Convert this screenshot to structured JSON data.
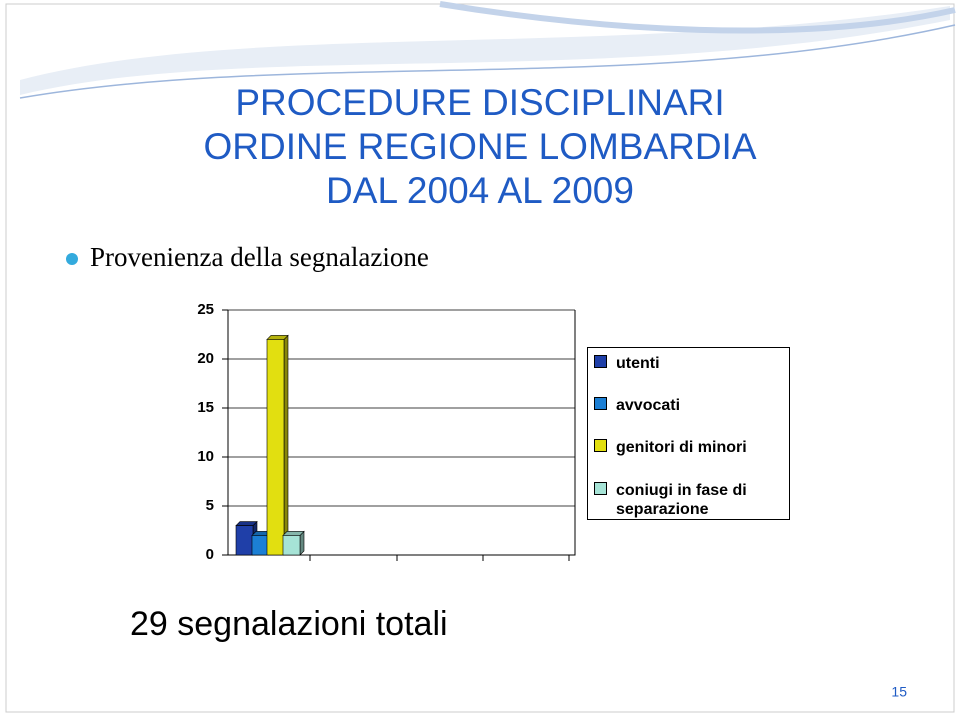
{
  "slide": {
    "title": [
      "PROCEDURE DISCIPLINARI",
      "ORDINE REGIONE LOMBARDIA",
      "DAL 2004 AL 2009"
    ],
    "bullet": "Provenienza della segnalazione",
    "footer": "29 segnalazioni totali",
    "page_number": "15"
  },
  "chart_data": {
    "type": "bar",
    "categories": [
      null
    ],
    "series": [
      {
        "name": "utenti",
        "color": "#1f3fa8",
        "values": [
          3
        ]
      },
      {
        "name": "avvocati",
        "color": "#1c7fd4",
        "values": [
          2
        ]
      },
      {
        "name": "genitori di minori",
        "color": "#e2df10",
        "values": [
          22
        ]
      },
      {
        "name": "coniugi in fase di separazione",
        "color": "#a6e3d6",
        "values": [
          2
        ]
      }
    ],
    "ylim": [
      0,
      25
    ],
    "yticks": [
      0,
      5,
      10,
      15,
      20,
      25
    ],
    "grid": true,
    "legend": "right"
  }
}
